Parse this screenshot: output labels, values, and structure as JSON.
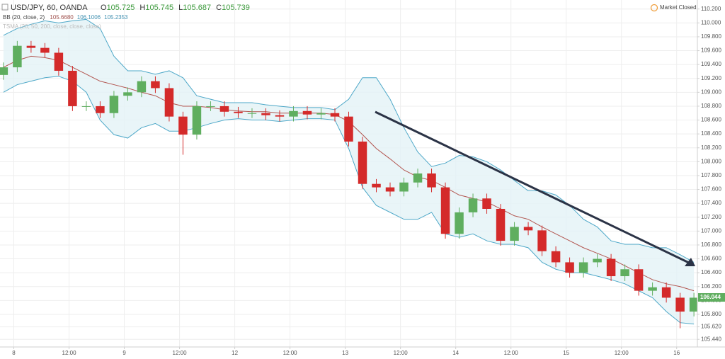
{
  "chart_data": {
    "type": "candlestick",
    "header": {
      "symbol": "USD/JPY, 60, OANDA",
      "ohlc": [
        {
          "label": "O",
          "value": 105.725
        },
        {
          "label": "H",
          "value": 105.745
        },
        {
          "label": "L",
          "value": 105.687
        },
        {
          "label": "C",
          "value": 105.739
        }
      ],
      "indicators": [
        {
          "name": "BB (20, close, 2)",
          "readouts": [
            {
              "value": 105.668,
              "label": "105.6680",
              "color": "#a0524e"
            },
            {
              "value": 106.1006,
              "label": "106.1006",
              "color": "#3f8fb0"
            },
            {
              "value": 105.2353,
              "label": "105.2353",
              "color": "#3f8fb0"
            }
          ]
        },
        {
          "name": "TSMA (20, 50, 200, close, close, close)",
          "readouts": []
        }
      ],
      "status": "Market Closed"
    },
    "categories": [
      null,
      null,
      null,
      null,
      null,
      null,
      null,
      null,
      null,
      null,
      null,
      null,
      null,
      null,
      null,
      null,
      null,
      null,
      null,
      null,
      null,
      null,
      null,
      null,
      null,
      null,
      null,
      null,
      null,
      null,
      null,
      null,
      null,
      null,
      null,
      null,
      null,
      null,
      null,
      null,
      null,
      null,
      null,
      null,
      null,
      null,
      null,
      null,
      null,
      null,
      null
    ],
    "open": [
      109.25,
      109.36,
      109.67,
      109.64,
      109.57,
      109.31,
      108.8,
      108.8,
      108.7,
      108.95,
      109.0,
      109.16,
      109.06,
      108.65,
      108.39,
      108.8,
      108.8,
      108.72,
      108.7,
      108.7,
      108.67,
      108.65,
      108.73,
      108.68,
      108.7,
      108.65,
      108.29,
      107.68,
      107.63,
      107.57,
      107.7,
      107.83,
      107.63,
      106.96,
      107.27,
      107.47,
      107.32,
      106.86,
      107.06,
      107.01,
      106.71,
      106.55,
      106.4,
      106.55,
      106.6,
      106.35,
      106.45,
      106.14,
      106.19,
      106.04,
      105.84
    ],
    "high": [
      109.43,
      109.74,
      109.74,
      109.71,
      109.64,
      109.38,
      108.87,
      108.87,
      109.02,
      109.07,
      109.23,
      109.23,
      109.13,
      108.72,
      108.87,
      108.87,
      108.87,
      108.79,
      108.77,
      108.77,
      108.74,
      108.8,
      108.8,
      108.77,
      108.77,
      108.72,
      108.36,
      107.75,
      107.7,
      107.77,
      107.9,
      107.9,
      107.7,
      107.34,
      107.54,
      107.54,
      107.39,
      107.13,
      107.13,
      107.08,
      106.78,
      106.62,
      106.62,
      106.67,
      106.67,
      106.52,
      106.52,
      106.26,
      106.26,
      106.11,
      106.11
    ],
    "low": [
      109.18,
      109.29,
      109.57,
      109.5,
      109.24,
      108.73,
      108.73,
      108.63,
      108.63,
      108.88,
      108.93,
      108.99,
      108.58,
      108.1,
      108.32,
      108.73,
      108.65,
      108.63,
      108.63,
      108.6,
      108.58,
      108.58,
      108.61,
      108.61,
      108.58,
      108.22,
      107.61,
      107.56,
      107.5,
      107.5,
      107.63,
      107.56,
      106.89,
      106.89,
      107.2,
      107.25,
      106.79,
      106.79,
      106.94,
      106.64,
      106.48,
      106.33,
      106.33,
      106.48,
      106.28,
      106.28,
      106.07,
      106.07,
      105.97,
      105.6,
      105.77
    ],
    "close": [
      109.36,
      109.67,
      109.64,
      109.57,
      109.31,
      108.8,
      108.8,
      108.7,
      108.95,
      109.0,
      109.16,
      109.06,
      108.65,
      108.39,
      108.8,
      108.8,
      108.72,
      108.7,
      108.7,
      108.67,
      108.65,
      108.73,
      108.68,
      108.7,
      108.65,
      108.29,
      107.68,
      107.63,
      107.57,
      107.7,
      107.83,
      107.63,
      106.96,
      107.27,
      107.47,
      107.32,
      106.86,
      107.06,
      107.01,
      106.71,
      106.55,
      106.4,
      106.55,
      106.6,
      106.35,
      106.45,
      106.14,
      106.19,
      106.04,
      105.84,
      106.04
    ],
    "up_color": "#5fae5f",
    "down_color": "#d42a2a",
    "bands": [
      {
        "color": "#4ea8c8",
        "values": [
          109.82,
          109.92,
          109.98,
          110.03,
          110.0,
          110.03,
          110.05,
          109.92,
          109.52,
          109.31,
          109.31,
          109.26,
          109.31,
          109.21,
          108.95,
          108.9,
          108.85,
          108.85,
          108.85,
          108.82,
          108.8,
          108.78,
          108.78,
          108.78,
          108.75,
          108.9,
          109.21,
          109.21,
          108.9,
          108.49,
          108.14,
          107.93,
          107.98,
          108.09,
          108.07,
          108.0,
          107.88,
          107.73,
          107.58,
          107.58,
          107.52,
          107.37,
          107.17,
          107.06,
          106.86,
          106.81,
          106.81,
          106.76,
          106.76,
          106.66,
          106.55
        ]
      },
      {
        "color": "#b2554f",
        "values": [
          109.36,
          109.46,
          109.52,
          109.5,
          109.46,
          109.36,
          109.26,
          109.16,
          109.11,
          109.06,
          109.0,
          108.95,
          108.85,
          108.8,
          108.8,
          108.78,
          108.75,
          108.73,
          108.72,
          108.72,
          108.7,
          108.7,
          108.7,
          108.7,
          108.68,
          108.58,
          108.39,
          108.19,
          108.04,
          107.88,
          107.78,
          107.73,
          107.63,
          107.52,
          107.47,
          107.42,
          107.32,
          107.22,
          107.17,
          107.06,
          106.96,
          106.86,
          106.76,
          106.68,
          106.6,
          106.5,
          106.4,
          106.3,
          106.24,
          106.2,
          106.14
        ]
      },
      {
        "color": "#4ea8c8",
        "values": [
          109.0,
          109.11,
          109.16,
          109.21,
          109.23,
          109.16,
          109.0,
          108.6,
          108.39,
          108.34,
          108.49,
          108.55,
          108.44,
          108.44,
          108.49,
          108.55,
          108.6,
          108.62,
          108.6,
          108.6,
          108.58,
          108.6,
          108.62,
          108.62,
          108.6,
          108.19,
          107.63,
          107.37,
          107.27,
          107.17,
          107.17,
          107.27,
          106.96,
          106.91,
          106.96,
          106.86,
          106.81,
          106.81,
          106.76,
          106.55,
          106.45,
          106.4,
          106.4,
          106.35,
          106.3,
          106.24,
          106.14,
          106.04,
          105.84,
          105.68,
          105.66
        ]
      }
    ],
    "band_fill": "#e4f3f6",
    "last_price": 106.044,
    "last_price_color": "#5fae5f",
    "xlim": [
      -0.25,
      50.25
    ],
    "xticks": [
      {
        "value": 0.75,
        "label": "8"
      },
      {
        "value": 4.75,
        "label": "12:00"
      },
      {
        "value": 8.75,
        "label": "9"
      },
      {
        "value": 12.75,
        "label": "12:00"
      },
      {
        "value": 16.75,
        "label": "12"
      },
      {
        "value": 20.75,
        "label": "12:00"
      },
      {
        "value": 24.75,
        "label": "13"
      },
      {
        "value": 28.75,
        "label": "12:00"
      },
      {
        "value": 32.75,
        "label": "14"
      },
      {
        "value": 36.75,
        "label": "12:00"
      },
      {
        "value": 40.75,
        "label": "15"
      },
      {
        "value": 44.75,
        "label": "12:00"
      },
      {
        "value": 48.75,
        "label": "16"
      }
    ],
    "ylim": [
      105.33,
      110.33
    ],
    "yticks": [
      {
        "value": 105.44,
        "label": "105.440"
      },
      {
        "value": 105.62,
        "label": "105.620"
      },
      {
        "value": 105.8,
        "label": "105.800"
      },
      {
        "value": 106.0,
        "label": "106.000"
      },
      {
        "value": 106.2,
        "label": "106.200"
      },
      {
        "value": 106.4,
        "label": "106.400"
      },
      {
        "value": 106.6,
        "label": "106.600"
      },
      {
        "value": 106.8,
        "label": "106.800"
      },
      {
        "value": 107.0,
        "label": "107.000"
      },
      {
        "value": 107.2,
        "label": "107.200"
      },
      {
        "value": 107.4,
        "label": "107.400"
      },
      {
        "value": 107.6,
        "label": "107.600"
      },
      {
        "value": 107.8,
        "label": "107.800"
      },
      {
        "value": 108.0,
        "label": "108.000"
      },
      {
        "value": 108.2,
        "label": "108.200"
      },
      {
        "value": 108.4,
        "label": "108.400"
      },
      {
        "value": 108.6,
        "label": "108.600"
      },
      {
        "value": 108.8,
        "label": "108.800"
      },
      {
        "value": 109.0,
        "label": "109.000"
      },
      {
        "value": 109.2,
        "label": "109.200"
      },
      {
        "value": 109.4,
        "label": "109.400"
      },
      {
        "value": 109.6,
        "label": "109.600"
      },
      {
        "value": 109.8,
        "label": "109.800"
      },
      {
        "value": 110.0,
        "label": "110.000"
      },
      {
        "value": 110.2,
        "label": "110.200"
      }
    ],
    "grid": true
  }
}
